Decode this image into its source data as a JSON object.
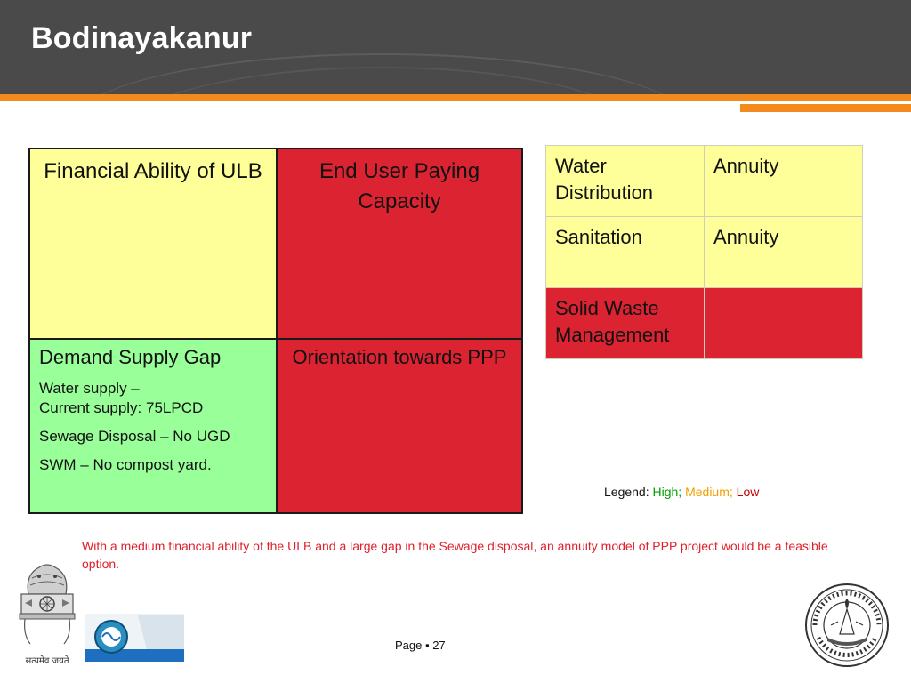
{
  "title": "Bodinayakanur",
  "quadrants": {
    "top_left": {
      "heading": "Financial Ability of ULB",
      "color": "#ffff99"
    },
    "top_right": {
      "heading": "End User Paying Capacity",
      "color": "#dc2332"
    },
    "bottom_left": {
      "heading": "Demand Supply Gap",
      "color": "#99ff99",
      "lines": {
        "water_1": "Water supply –",
        "water_2": "Current supply: 75LPCD",
        "sewage": "Sewage Disposal – No UGD",
        "swm": "SWM – No compost yard."
      }
    },
    "bottom_right": {
      "heading": "Orientation towards PPP",
      "color": "#dc2332"
    }
  },
  "ppp_table": {
    "rows": [
      {
        "sector": "Water Distribution",
        "model": "Annuity",
        "status_color": "#ffff99"
      },
      {
        "sector": "Sanitation",
        "model": "Annuity",
        "status_color": "#ffff99"
      },
      {
        "sector": "Solid Waste Management",
        "model": "",
        "status_color": "#dc2332"
      }
    ]
  },
  "legend": {
    "prefix": "Legend:",
    "high": "High;",
    "medium": "Medium;",
    "low": "Low",
    "colors": {
      "high": "#00a000",
      "medium": "#f0a000",
      "low": "#c00000"
    }
  },
  "note": "With a medium financial ability of the ULB and a large gap in the Sewage disposal, an annuity model of PPP project would be a feasible option.",
  "footer": {
    "page_label": "Page ▪ 27",
    "emblem_caption": "सत्यमेव जयते"
  },
  "colors": {
    "header": "#4a4a4a",
    "accent": "#f28a1e"
  }
}
